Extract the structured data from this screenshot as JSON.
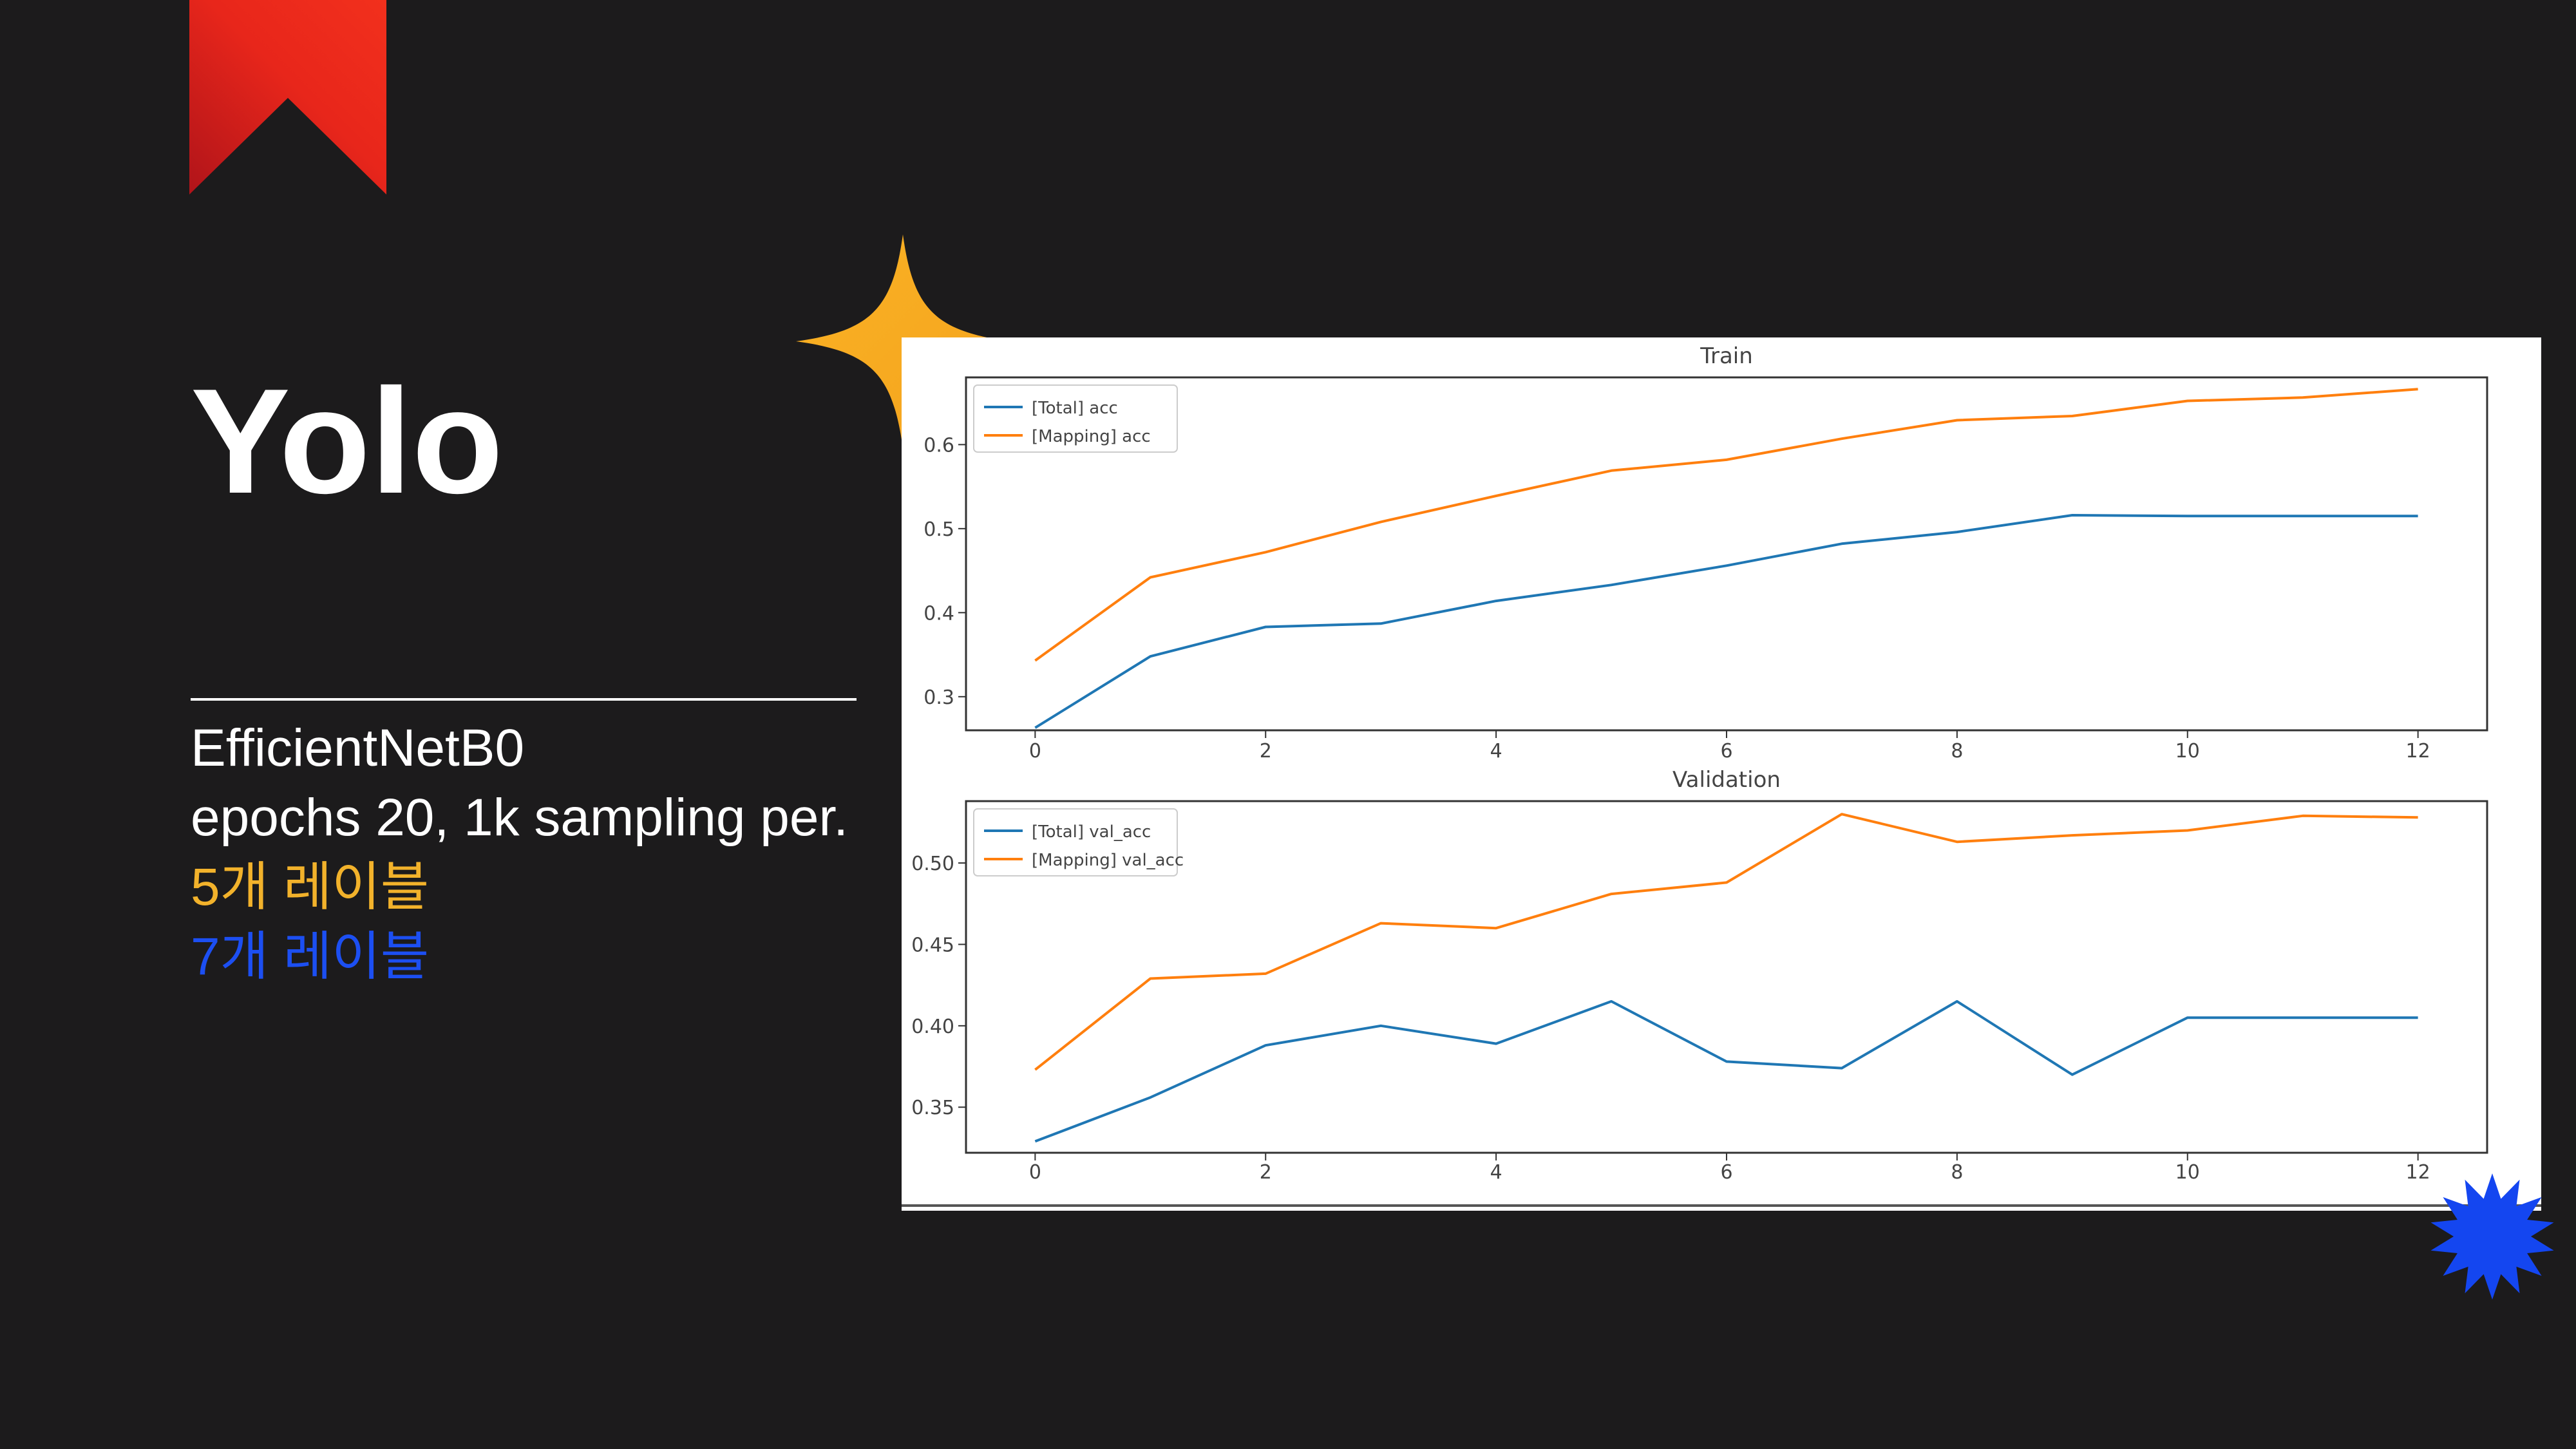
{
  "slide": {
    "title": "Yolo",
    "lines": [
      "EfficientNetB0",
      "epochs 20, 1k sampling per.",
      "5개 레이블",
      "7개 레이블"
    ],
    "colors": {
      "background": "#1c1b1c",
      "accent_red": "#f2301c",
      "accent_yellow": "#f2b22b",
      "accent_blue": "#1c4ff2"
    },
    "decorations": [
      "bookmark-ribbon",
      "sparkle-star",
      "burst-star"
    ]
  },
  "chart_data": [
    {
      "type": "line",
      "title": "Train",
      "xlabel": "",
      "ylabel": "",
      "x": [
        0,
        1,
        2,
        3,
        4,
        5,
        6,
        7,
        8,
        9,
        10,
        11,
        12
      ],
      "xticks": [
        0,
        2,
        4,
        6,
        8,
        10,
        12
      ],
      "yticks": [
        0.3,
        0.4,
        0.5,
        0.6
      ],
      "ytick_labels": [
        "0.3",
        "0.4",
        "0.5",
        "0.6"
      ],
      "xlim": [
        -0.6,
        12.6
      ],
      "ylim": [
        0.26,
        0.68
      ],
      "legend": "top-left",
      "grid": false,
      "series": [
        {
          "name": "[Total] acc",
          "color": "#1f77b4",
          "values": [
            0.263,
            0.348,
            0.383,
            0.387,
            0.414,
            0.433,
            0.456,
            0.482,
            0.496,
            0.516,
            0.515,
            0.515,
            0.515
          ]
        },
        {
          "name": "[Mapping] acc",
          "color": "#ff7f0e",
          "values": [
            0.343,
            0.442,
            0.472,
            0.508,
            0.539,
            0.569,
            0.582,
            0.607,
            0.629,
            0.634,
            0.652,
            0.656,
            0.666
          ]
        }
      ]
    },
    {
      "type": "line",
      "title": "Validation",
      "xlabel": "",
      "ylabel": "",
      "x": [
        0,
        1,
        2,
        3,
        4,
        5,
        6,
        7,
        8,
        9,
        10,
        11,
        12
      ],
      "xticks": [
        0,
        2,
        4,
        6,
        8,
        10,
        12
      ],
      "yticks": [
        0.35,
        0.4,
        0.45,
        0.5
      ],
      "ytick_labels": [
        "0.35",
        "0.40",
        "0.45",
        "0.50"
      ],
      "xlim": [
        -0.6,
        12.6
      ],
      "ylim": [
        0.322,
        0.538
      ],
      "legend": "top-left",
      "grid": false,
      "series": [
        {
          "name": "[Total] val_acc",
          "color": "#1f77b4",
          "values": [
            0.329,
            0.356,
            0.388,
            0.4,
            0.389,
            0.415,
            0.378,
            0.374,
            0.415,
            0.37,
            0.405,
            0.405,
            0.405
          ]
        },
        {
          "name": "[Mapping] val_acc",
          "color": "#ff7f0e",
          "values": [
            0.373,
            0.429,
            0.432,
            0.463,
            0.46,
            0.481,
            0.488,
            0.53,
            0.513,
            0.517,
            0.52,
            0.529,
            0.528
          ]
        }
      ]
    }
  ]
}
